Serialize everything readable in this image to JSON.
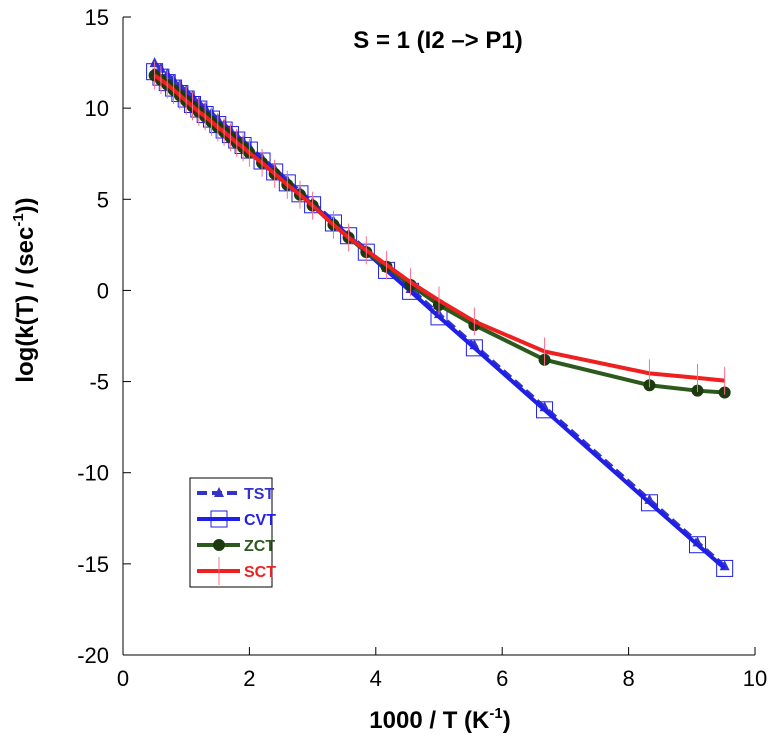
{
  "chart_data": {
    "type": "line",
    "title": "S = 1 (I2 –> P1)",
    "xlabel": {
      "main": "1000 / T (K",
      "sup": "-1",
      "end": ")"
    },
    "ylabel": {
      "main": "log(k(T) / (sec",
      "sup": "-1",
      "end": "))"
    },
    "xlim": [
      0,
      10
    ],
    "xticks": [
      0,
      2,
      4,
      6,
      8,
      10
    ],
    "ylim": [
      -20,
      15
    ],
    "yticks": [
      -20,
      -15,
      -10,
      -5,
      0,
      5,
      10,
      15
    ],
    "legend": "lower-left",
    "x": [
      0.5,
      0.6,
      0.7,
      0.8,
      0.9,
      1.0,
      1.1,
      1.2,
      1.3,
      1.4,
      1.5,
      1.6,
      1.7,
      1.8,
      1.9,
      2.0,
      2.2,
      2.4,
      2.6,
      2.8,
      3.0,
      3.33,
      3.57,
      3.85,
      4.17,
      4.55,
      5.0,
      5.56,
      6.67,
      8.33,
      9.09,
      9.52
    ],
    "series": [
      {
        "name": "TST",
        "color": "#3333cc",
        "marker": "triangle",
        "dashed": true,
        "values": [
          12.47,
          12.16,
          11.86,
          11.55,
          11.25,
          10.94,
          10.63,
          10.33,
          10.02,
          9.72,
          9.41,
          9.1,
          8.8,
          8.49,
          8.19,
          7.88,
          7.27,
          6.66,
          6.04,
          5.43,
          4.82,
          3.81,
          3.08,
          2.22,
          1.24,
          0.08,
          -1.3,
          -3.01,
          -6.41,
          -11.49,
          -13.82,
          -15.13
        ]
      },
      {
        "name": "CVT",
        "color": "#1f1fe6",
        "marker": "square",
        "dashed": false,
        "values": [
          12.0,
          11.7,
          11.4,
          11.1,
          10.8,
          10.5,
          10.2,
          9.95,
          9.65,
          9.4,
          9.1,
          8.8,
          8.55,
          8.25,
          7.95,
          7.7,
          7.1,
          6.5,
          5.9,
          5.3,
          4.7,
          3.7,
          3.0,
          2.1,
          1.1,
          -0.05,
          -1.45,
          -3.15,
          -6.55,
          -11.65,
          -13.95,
          -15.25
        ]
      },
      {
        "name": "ZCT",
        "color": "#2b5a1c",
        "marker": "circle",
        "dashed": false,
        "values": [
          11.8,
          11.55,
          11.3,
          11.0,
          10.7,
          10.4,
          10.1,
          9.8,
          9.55,
          9.25,
          8.95,
          8.7,
          8.4,
          8.1,
          7.85,
          7.55,
          7.0,
          6.4,
          5.8,
          5.25,
          4.65,
          3.6,
          2.9,
          2.1,
          1.3,
          0.3,
          -0.8,
          -1.9,
          -3.8,
          -5.2,
          -5.5,
          -5.6
        ]
      },
      {
        "name": "SCT",
        "color": "#ee2020",
        "marker": "vline",
        "dashed": false,
        "values": [
          11.8,
          11.55,
          11.3,
          11.0,
          10.7,
          10.4,
          10.1,
          9.8,
          9.55,
          9.25,
          8.95,
          8.7,
          8.4,
          8.1,
          7.85,
          7.55,
          7.0,
          6.4,
          5.8,
          5.25,
          4.65,
          3.6,
          2.9,
          2.2,
          1.4,
          0.45,
          -0.55,
          -1.7,
          -3.35,
          -4.55,
          -4.8,
          -4.95
        ]
      }
    ]
  }
}
